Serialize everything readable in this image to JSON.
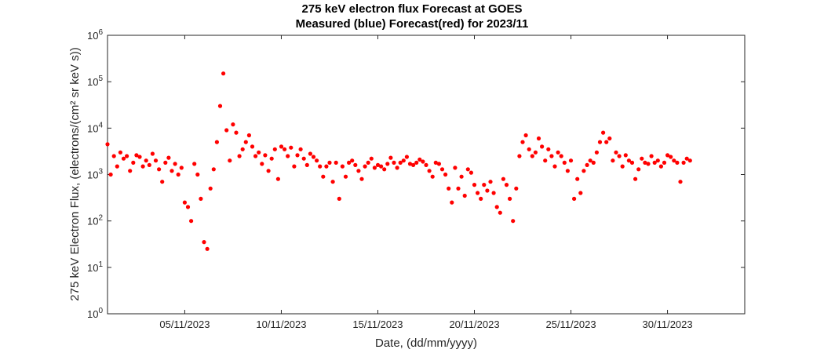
{
  "chart_data": {
    "type": "scatter",
    "title": "275 keV electron flux Forecast at GOES",
    "subtitle": "Measured (blue) Forecast(red) for 2023/11",
    "xlabel": "Date, (dd/mm/yyyy)",
    "ylabel": "275 keV Electron Flux, (electrons/(cm² sr keV s))",
    "y_scale": "log",
    "ylim": [
      1,
      1000000
    ],
    "xlim": [
      "2023-11-01",
      "2023-12-04"
    ],
    "grid": false,
    "legend": "none",
    "marker_color": "#ff0000",
    "x_tick_labels": [
      "05/11/2023",
      "10/11/2023",
      "15/11/2023",
      "20/11/2023",
      "25/11/2023",
      "30/11/2023"
    ],
    "y_tick_labels": [
      {
        "base": "10",
        "exp": "0"
      },
      {
        "base": "10",
        "exp": "1"
      },
      {
        "base": "10",
        "exp": "2"
      },
      {
        "base": "10",
        "exp": "3"
      },
      {
        "base": "10",
        "exp": "4"
      },
      {
        "base": "10",
        "exp": "5"
      },
      {
        "base": "10",
        "exp": "6"
      }
    ],
    "series": [
      {
        "color": "#ff0000",
        "x": [
          "2023-11-01 00:00",
          "2023-11-01 04:00",
          "2023-11-01 08:00",
          "2023-11-01 12:00",
          "2023-11-01 16:00",
          "2023-11-01 20:00",
          "2023-11-02 00:00",
          "2023-11-02 04:00",
          "2023-11-02 08:00",
          "2023-11-02 12:00",
          "2023-11-02 16:00",
          "2023-11-02 20:00",
          "2023-11-03 00:00",
          "2023-11-03 04:00",
          "2023-11-03 08:00",
          "2023-11-03 12:00",
          "2023-11-03 16:00",
          "2023-11-03 20:00",
          "2023-11-04 00:00",
          "2023-11-04 04:00",
          "2023-11-04 08:00",
          "2023-11-04 12:00",
          "2023-11-04 16:00",
          "2023-11-04 20:00",
          "2023-11-05 00:00",
          "2023-11-05 04:00",
          "2023-11-05 08:00",
          "2023-11-05 12:00",
          "2023-11-05 16:00",
          "2023-11-05 20:00",
          "2023-11-06 00:00",
          "2023-11-06 04:00",
          "2023-11-06 08:00",
          "2023-11-06 12:00",
          "2023-11-06 16:00",
          "2023-11-06 20:00",
          "2023-11-07 00:00",
          "2023-11-07 04:00",
          "2023-11-07 08:00",
          "2023-11-07 12:00",
          "2023-11-07 16:00",
          "2023-11-07 20:00",
          "2023-11-08 00:00",
          "2023-11-08 04:00",
          "2023-11-08 08:00",
          "2023-11-08 12:00",
          "2023-11-08 16:00",
          "2023-11-08 20:00",
          "2023-11-09 00:00",
          "2023-11-09 04:00",
          "2023-11-09 08:00",
          "2023-11-09 12:00",
          "2023-11-09 16:00",
          "2023-11-09 20:00",
          "2023-11-10 00:00",
          "2023-11-10 04:00",
          "2023-11-10 08:00",
          "2023-11-10 12:00",
          "2023-11-10 16:00",
          "2023-11-10 20:00",
          "2023-11-11 00:00",
          "2023-11-11 04:00",
          "2023-11-11 08:00",
          "2023-11-11 12:00",
          "2023-11-11 16:00",
          "2023-11-11 20:00",
          "2023-11-12 00:00",
          "2023-11-12 04:00",
          "2023-11-12 08:00",
          "2023-11-12 12:00",
          "2023-11-12 16:00",
          "2023-11-12 20:00",
          "2023-11-13 00:00",
          "2023-11-13 04:00",
          "2023-11-13 08:00",
          "2023-11-13 12:00",
          "2023-11-13 16:00",
          "2023-11-13 20:00",
          "2023-11-14 00:00",
          "2023-11-14 04:00",
          "2023-11-14 08:00",
          "2023-11-14 12:00",
          "2023-11-14 16:00",
          "2023-11-14 20:00",
          "2023-11-15 00:00",
          "2023-11-15 04:00",
          "2023-11-15 08:00",
          "2023-11-15 12:00",
          "2023-11-15 16:00",
          "2023-11-15 20:00",
          "2023-11-16 00:00",
          "2023-11-16 04:00",
          "2023-11-16 08:00",
          "2023-11-16 12:00",
          "2023-11-16 16:00",
          "2023-11-16 20:00",
          "2023-11-17 00:00",
          "2023-11-17 04:00",
          "2023-11-17 08:00",
          "2023-11-17 12:00",
          "2023-11-17 16:00",
          "2023-11-17 20:00",
          "2023-11-18 00:00",
          "2023-11-18 04:00",
          "2023-11-18 08:00",
          "2023-11-18 12:00",
          "2023-11-18 16:00",
          "2023-11-18 20:00",
          "2023-11-19 00:00",
          "2023-11-19 04:00",
          "2023-11-19 08:00",
          "2023-11-19 12:00",
          "2023-11-19 16:00",
          "2023-11-19 20:00",
          "2023-11-20 00:00",
          "2023-11-20 04:00",
          "2023-11-20 08:00",
          "2023-11-20 12:00",
          "2023-11-20 16:00",
          "2023-11-20 20:00",
          "2023-11-21 00:00",
          "2023-11-21 04:00",
          "2023-11-21 08:00",
          "2023-11-21 12:00",
          "2023-11-21 16:00",
          "2023-11-21 20:00",
          "2023-11-22 00:00",
          "2023-11-22 04:00",
          "2023-11-22 08:00",
          "2023-11-22 12:00",
          "2023-11-22 16:00",
          "2023-11-22 20:00",
          "2023-11-23 00:00",
          "2023-11-23 04:00",
          "2023-11-23 08:00",
          "2023-11-23 12:00",
          "2023-11-23 16:00",
          "2023-11-23 20:00",
          "2023-11-24 00:00",
          "2023-11-24 04:00",
          "2023-11-24 08:00",
          "2023-11-24 12:00",
          "2023-11-24 16:00",
          "2023-11-24 20:00",
          "2023-11-25 00:00",
          "2023-11-25 04:00",
          "2023-11-25 08:00",
          "2023-11-25 12:00",
          "2023-11-25 16:00",
          "2023-11-25 20:00",
          "2023-11-26 00:00",
          "2023-11-26 04:00",
          "2023-11-26 08:00",
          "2023-11-26 12:00",
          "2023-11-26 16:00",
          "2023-11-26 20:00",
          "2023-11-27 00:00",
          "2023-11-27 04:00",
          "2023-11-27 08:00",
          "2023-11-27 12:00",
          "2023-11-27 16:00",
          "2023-11-27 20:00",
          "2023-11-28 00:00",
          "2023-11-28 04:00",
          "2023-11-28 08:00",
          "2023-11-28 12:00",
          "2023-11-28 16:00",
          "2023-11-28 20:00",
          "2023-11-29 00:00",
          "2023-11-29 04:00",
          "2023-11-29 08:00",
          "2023-11-29 12:00",
          "2023-11-29 16:00",
          "2023-11-29 20:00",
          "2023-11-30 00:00",
          "2023-11-30 04:00",
          "2023-11-30 08:00",
          "2023-11-30 12:00",
          "2023-11-30 16:00",
          "2023-11-30 20:00",
          "2023-12-01 00:00",
          "2023-12-01 04:00"
        ],
        "y": [
          4500,
          1000,
          2500,
          1500,
          3000,
          2200,
          2500,
          1200,
          1800,
          2600,
          2400,
          1500,
          2000,
          1600,
          2800,
          2000,
          1300,
          700,
          1800,
          2300,
          1200,
          1700,
          1000,
          1400,
          250,
          200,
          100,
          1700,
          1000,
          300,
          35,
          25,
          500,
          1300,
          5000,
          30000,
          150000,
          9000,
          2000,
          12000,
          8000,
          2500,
          3500,
          5000,
          7000,
          4000,
          2500,
          3000,
          1700,
          2600,
          1200,
          2200,
          3500,
          800,
          4000,
          3500,
          2500,
          3800,
          1500,
          2600,
          3500,
          2200,
          1600,
          2800,
          2400,
          2000,
          1500,
          900,
          1500,
          1800,
          700,
          1800,
          300,
          1500,
          900,
          1800,
          2000,
          1600,
          1200,
          800,
          1500,
          1800,
          2200,
          1400,
          1600,
          1500,
          1300,
          1700,
          2300,
          1800,
          1400,
          1800,
          2000,
          2400,
          1700,
          1600,
          1800,
          2100,
          1900,
          1600,
          1200,
          900,
          1800,
          1700,
          1300,
          1000,
          500,
          250,
          1400,
          500,
          900,
          350,
          1300,
          1100,
          600,
          400,
          300,
          600,
          450,
          700,
          400,
          200,
          150,
          800,
          600,
          300,
          100,
          500,
          2500,
          5000,
          7000,
          3500,
          2500,
          3000,
          6000,
          4000,
          2000,
          3500,
          2500,
          1500,
          3000,
          2500,
          1800,
          1200,
          2000,
          300,
          800,
          400,
          1200,
          1600,
          2000,
          1800,
          3000,
          5000,
          8000,
          5000,
          6000,
          2000,
          3000,
          2500,
          1500,
          2600,
          2000,
          1800,
          800,
          1300,
          2200,
          1800,
          1700,
          2500,
          1800,
          2000,
          1500,
          1800,
          2600,
          2400,
          2000,
          1800,
          700,
          1800,
          2200,
          2000
        ]
      }
    ]
  }
}
